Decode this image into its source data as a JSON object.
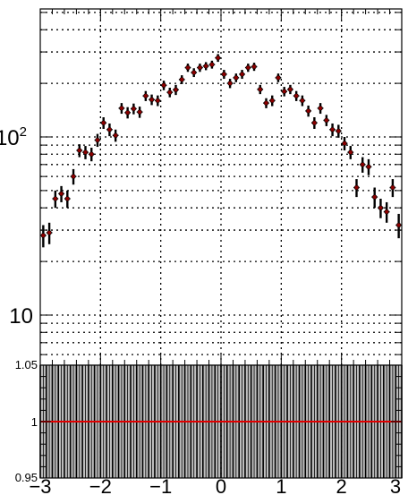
{
  "chart_data": [
    {
      "type": "scatter",
      "title": "",
      "xlabel": "",
      "ylabel": "",
      "yscale": "log",
      "ylim": [
        5.5,
        500
      ],
      "xlim": [
        -3,
        3
      ],
      "grid": true,
      "x": [
        -2.95,
        -2.85,
        -2.75,
        -2.65,
        -2.55,
        -2.45,
        -2.35,
        -2.25,
        -2.15,
        -2.05,
        -1.95,
        -1.85,
        -1.75,
        -1.65,
        -1.55,
        -1.45,
        -1.35,
        -1.25,
        -1.15,
        -1.05,
        -0.95,
        -0.85,
        -0.75,
        -0.65,
        -0.55,
        -0.45,
        -0.35,
        -0.25,
        -0.15,
        -0.05,
        0.05,
        0.15,
        0.25,
        0.35,
        0.45,
        0.55,
        0.65,
        0.75,
        0.85,
        0.95,
        1.05,
        1.15,
        1.25,
        1.35,
        1.45,
        1.55,
        1.65,
        1.75,
        1.85,
        1.95,
        2.05,
        2.15,
        2.25,
        2.35,
        2.45,
        2.55,
        2.65,
        2.75,
        2.85,
        2.95
      ],
      "values": [
        28,
        29,
        45,
        48,
        45,
        60,
        84,
        82,
        80,
        96,
        120,
        110,
        102,
        145,
        137,
        144,
        138,
        170,
        162,
        160,
        195,
        178,
        184,
        210,
        245,
        230,
        245,
        250,
        255,
        278,
        225,
        200,
        215,
        225,
        245,
        248,
        185,
        155,
        160,
        215,
        180,
        185,
        170,
        160,
        140,
        120,
        145,
        124,
        110,
        108,
        92,
        82,
        52,
        70,
        68,
        46,
        40,
        38,
        52,
        32
      ],
      "errors": [
        4,
        4,
        5,
        5,
        5,
        6,
        7,
        7,
        7,
        8,
        9,
        9,
        8,
        10,
        10,
        10,
        10,
        11,
        11,
        11,
        12,
        11,
        12,
        12,
        13,
        13,
        13,
        13,
        13,
        14,
        13,
        12,
        12,
        13,
        13,
        13,
        11,
        10,
        11,
        12,
        11,
        11,
        11,
        11,
        10,
        9,
        10,
        9,
        9,
        9,
        8,
        7,
        6,
        7,
        7,
        6,
        5,
        5,
        6,
        5
      ],
      "xticks": [
        "−3",
        "−2",
        "−1",
        "0",
        "1",
        "2",
        "3"
      ],
      "yticks": [
        "10",
        "10^2"
      ],
      "marker_color": "#8b0000"
    },
    {
      "type": "line",
      "xlim": [
        -3,
        3
      ],
      "ylim": [
        0.95,
        1.05
      ],
      "reference_line": 1,
      "band_halfwidth": 0.05,
      "yticks": [
        "0.95",
        "1",
        "1.05"
      ],
      "line_color": "#e00000",
      "band_color": "#bdbdbd"
    }
  ]
}
